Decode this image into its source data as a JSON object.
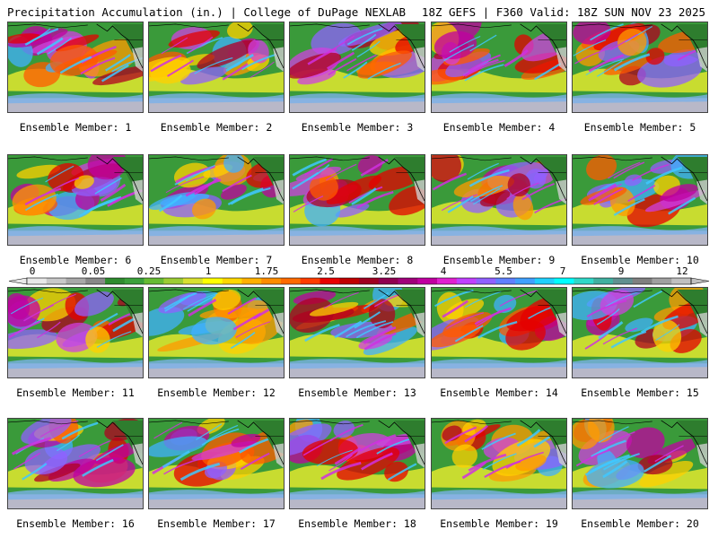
{
  "header": {
    "left_title": "Precipitation Accumulation (in.) | College of DuPage NEXLAB",
    "right_title": "18Z GEFS | F360 Valid: 18Z SUN NOV 23 2025"
  },
  "colorbar": {
    "tick_labels": [
      "0",
      "0.05",
      "0.25",
      "1",
      "1.75",
      "2.5",
      "3.25",
      "4",
      "5.5",
      "7",
      "9",
      "12"
    ],
    "colors": [
      "#e8e8e8",
      "#c8c8c8",
      "#a8a8a8",
      "#888888",
      "#2e8b2e",
      "#3aa03a",
      "#66bb33",
      "#9ccc33",
      "#d8e030",
      "#ffff00",
      "#ffd700",
      "#ffb000",
      "#ff8c00",
      "#ff6a00",
      "#ff3c00",
      "#e80000",
      "#c00000",
      "#a00020",
      "#900050",
      "#a0007a",
      "#c000a0",
      "#e020d0",
      "#c040ff",
      "#9060ff",
      "#6080ff",
      "#40a0ff",
      "#20d0ff",
      "#00ffff",
      "#30d8c8",
      "#40b0a0",
      "#609090",
      "#808080",
      "#a0a0a0",
      "#c0c0c0"
    ]
  },
  "members": [
    {
      "label": "Ensemble Member: 1"
    },
    {
      "label": "Ensemble Member: 2"
    },
    {
      "label": "Ensemble Member: 3"
    },
    {
      "label": "Ensemble Member: 4"
    },
    {
      "label": "Ensemble Member: 5"
    },
    {
      "label": "Ensemble Member: 6"
    },
    {
      "label": "Ensemble Member: 7"
    },
    {
      "label": "Ensemble Member: 8"
    },
    {
      "label": "Ensemble Member: 9"
    },
    {
      "label": "Ensemble Member: 10"
    },
    {
      "label": "Ensemble Member: 11"
    },
    {
      "label": "Ensemble Member: 12"
    },
    {
      "label": "Ensemble Member: 13"
    },
    {
      "label": "Ensemble Member: 14"
    },
    {
      "label": "Ensemble Member: 15"
    },
    {
      "label": "Ensemble Member: 16"
    },
    {
      "label": "Ensemble Member: 17"
    },
    {
      "label": "Ensemble Member: 18"
    },
    {
      "label": "Ensemble Member: 19"
    },
    {
      "label": "Ensemble Member: 20"
    }
  ]
}
